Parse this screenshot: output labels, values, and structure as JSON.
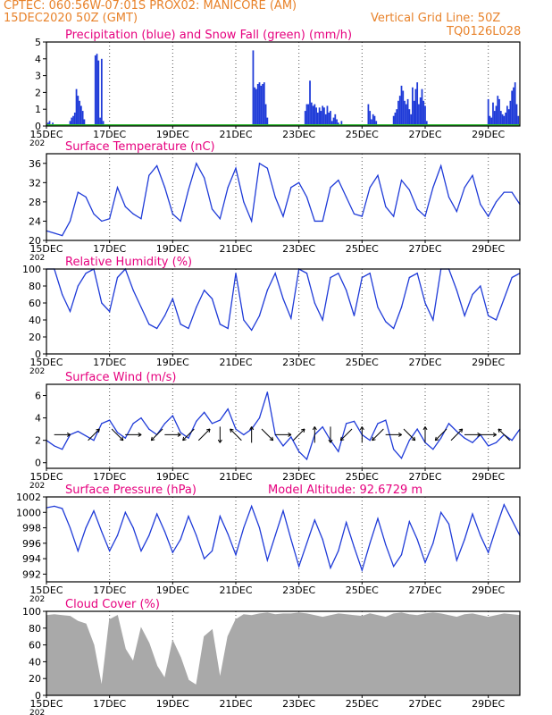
{
  "header": {
    "line1": "CPTEC:   060:56W-07:01S   PROX02: MANICORE (AM)",
    "line2": "15DEC2020 50Z (GMT)",
    "grid_note": "Vertical Grid Line: 50Z",
    "code": "TQ0126L028"
  },
  "colors": {
    "title": "#e6007e",
    "header": "#e8822a",
    "line": "#1f3bd8",
    "snow": "#2db82d",
    "cloud": "#a9a9a9",
    "grid": "#555555"
  },
  "x_tick_labels": [
    "15DEC",
    "17DEC",
    "19DEC",
    "21DEC",
    "23DEC",
    "25DEC",
    "27DEC",
    "29DEC"
  ],
  "chart_data": [
    {
      "id": "precip",
      "type": "bar",
      "title": "Precipitation (blue) and Snow Fall (green) (mm/h)",
      "xlim": [
        0,
        15
      ],
      "ylim": [
        0,
        5
      ],
      "yticks": [
        "0",
        "1",
        "2",
        "3",
        "4",
        "5"
      ],
      "ytick_values": [
        0,
        1,
        2,
        3,
        4,
        5
      ],
      "colors": [
        "#1f3bd8",
        "#2db82d"
      ],
      "series": [
        {
          "name": "Precipitation",
          "type": "bar",
          "x": [
            0.05,
            0.1,
            0.15,
            0.2,
            0.25,
            0.3,
            0.35,
            0.4,
            0.45,
            0.5,
            0.75,
            0.8,
            0.85,
            0.9,
            0.95,
            1.0,
            1.05,
            1.1,
            1.15,
            1.2,
            1.55,
            1.6,
            1.65,
            1.7,
            1.75,
            1.8,
            6.55,
            6.6,
            6.65,
            6.7,
            6.75,
            6.8,
            6.85,
            6.9,
            6.95,
            7.0,
            8.2,
            8.25,
            8.3,
            8.35,
            8.4,
            8.45,
            8.5,
            8.55,
            8.6,
            8.65,
            8.7,
            8.75,
            8.8,
            8.85,
            8.9,
            8.95,
            9.0,
            9.05,
            9.1,
            9.15,
            9.2,
            9.25,
            9.3,
            9.35,
            10.2,
            10.25,
            10.3,
            10.35,
            10.4,
            10.45,
            11.0,
            11.05,
            11.1,
            11.15,
            11.2,
            11.25,
            11.3,
            11.35,
            11.4,
            11.45,
            11.5,
            11.55,
            11.6,
            11.65,
            11.7,
            11.75,
            11.8,
            11.85,
            11.9,
            11.95,
            12.0,
            12.05,
            14.0,
            14.05,
            14.1,
            14.15,
            14.2,
            14.25,
            14.3,
            14.35,
            14.4,
            14.45,
            14.5,
            14.55,
            14.6,
            14.65,
            14.7,
            14.75,
            14.8,
            14.85,
            14.9,
            14.95
          ],
          "values": [
            0.2,
            0.3,
            0.1,
            0.2,
            0.1,
            0.1,
            0.05,
            0.1,
            0.05,
            0.1,
            0.3,
            0.5,
            0.6,
            0.8,
            2.2,
            1.8,
            1.5,
            1.2,
            0.9,
            0.4,
            4.2,
            4.3,
            3.9,
            0.5,
            4.0,
            0.3,
            4.5,
            2.3,
            2.2,
            2.5,
            2.6,
            2.4,
            2.5,
            2.6,
            1.3,
            0.5,
            0.9,
            1.3,
            1.3,
            2.7,
            1.4,
            1.2,
            1.3,
            1.1,
            0.8,
            1.1,
            0.9,
            1.2,
            1.1,
            0.7,
            1.2,
            0.8,
            0.9,
            0.3,
            0.5,
            0.7,
            0.4,
            0.2,
            0.1,
            0.3,
            1.3,
            0.9,
            0.4,
            0.7,
            0.6,
            0.3,
            0.6,
            0.8,
            1.0,
            1.5,
            1.8,
            2.4,
            2.1,
            1.5,
            1.3,
            1.6,
            1.0,
            0.7,
            2.3,
            1.5,
            2.2,
            2.6,
            1.3,
            1.7,
            2.2,
            1.5,
            1.2,
            0.3,
            1.6,
            0.6,
            0.5,
            1.4,
            0.9,
            1.2,
            1.8,
            1.6,
            0.9,
            0.7,
            0.6,
            0.8,
            1.2,
            1.0,
            1.5,
            2.1,
            2.3,
            2.6,
            1.3,
            0.6
          ]
        },
        {
          "name": "Snow Fall",
          "type": "line",
          "x": [
            0,
            15
          ],
          "values": [
            0,
            0
          ]
        }
      ]
    },
    {
      "id": "temp",
      "type": "line",
      "title": "Surface Temperature (nC)",
      "xlim": [
        0,
        15
      ],
      "ylim": [
        20,
        38
      ],
      "yticks": [
        "20",
        "24",
        "28",
        "32",
        "36"
      ],
      "ytick_values": [
        20,
        24,
        28,
        32,
        36
      ],
      "series": [
        {
          "name": "Surface Temperature",
          "x": [
            0,
            0.25,
            0.5,
            0.75,
            1,
            1.25,
            1.5,
            1.75,
            2,
            2.25,
            2.5,
            2.75,
            3,
            3.25,
            3.5,
            3.75,
            4,
            4.25,
            4.5,
            4.75,
            5,
            5.25,
            5.5,
            5.75,
            6,
            6.25,
            6.5,
            6.75,
            7,
            7.25,
            7.5,
            7.75,
            8,
            8.25,
            8.5,
            8.75,
            9,
            9.25,
            9.5,
            9.75,
            10,
            10.25,
            10.5,
            10.75,
            11,
            11.25,
            11.5,
            11.75,
            12,
            12.25,
            12.5,
            12.75,
            13,
            13.25,
            13.5,
            13.75,
            14,
            14.25,
            14.5,
            14.75,
            15
          ],
          "values": [
            22,
            21.5,
            21,
            24,
            30,
            29,
            25.5,
            24,
            24.5,
            31,
            27,
            25.5,
            24.5,
            33.5,
            35.5,
            31,
            25.5,
            24,
            30.5,
            36,
            33,
            26.5,
            24.5,
            31,
            35,
            28,
            24,
            36,
            35,
            29,
            25,
            31,
            32,
            29,
            24,
            24,
            31,
            32.5,
            29,
            25.5,
            25,
            31,
            33.5,
            27,
            25,
            32.5,
            30.5,
            26.5,
            25,
            31,
            35.5,
            29,
            26,
            31,
            33.5,
            27.5,
            25,
            28,
            30,
            30,
            27.5
          ]
        }
      ]
    },
    {
      "id": "rh",
      "type": "line",
      "title": "Relative Humidity (%)",
      "xlim": [
        0,
        15
      ],
      "ylim": [
        0,
        100
      ],
      "yticks": [
        "0",
        "20",
        "40",
        "60",
        "80",
        "100"
      ],
      "ytick_values": [
        0,
        20,
        40,
        60,
        80,
        100
      ],
      "series": [
        {
          "name": "Relative Humidity",
          "x": [
            0,
            0.25,
            0.5,
            0.75,
            1,
            1.25,
            1.5,
            1.75,
            2,
            2.25,
            2.5,
            2.75,
            3,
            3.25,
            3.5,
            3.75,
            4,
            4.25,
            4.5,
            4.75,
            5,
            5.25,
            5.5,
            5.75,
            6,
            6.25,
            6.5,
            6.75,
            7,
            7.25,
            7.5,
            7.75,
            8,
            8.25,
            8.5,
            8.75,
            9,
            9.25,
            9.5,
            9.75,
            10,
            10.25,
            10.5,
            10.75,
            11,
            11.25,
            11.5,
            11.75,
            12,
            12.25,
            12.5,
            12.75,
            13,
            13.25,
            13.5,
            13.75,
            14,
            14.25,
            14.5,
            14.75,
            15
          ],
          "values": [
            100,
            100,
            70,
            50,
            80,
            95,
            100,
            60,
            50,
            90,
            100,
            75,
            55,
            35,
            30,
            45,
            65,
            35,
            30,
            55,
            75,
            65,
            35,
            30,
            95,
            40,
            28,
            45,
            75,
            95,
            65,
            42,
            100,
            95,
            60,
            40,
            90,
            95,
            75,
            45,
            90,
            95,
            55,
            38,
            30,
            55,
            90,
            95,
            60,
            40,
            100,
            100,
            75,
            45,
            70,
            80,
            45,
            40,
            65,
            90,
            95
          ]
        }
      ]
    },
    {
      "id": "wind",
      "type": "line",
      "title": "Surface Wind (m/s)",
      "xlim": [
        0,
        15
      ],
      "ylim": [
        -0.5,
        7
      ],
      "yticks": [
        "0",
        "2",
        "4",
        "6"
      ],
      "ytick_values": [
        0,
        2,
        4,
        6
      ],
      "series": [
        {
          "name": "Surface Wind",
          "x": [
            0,
            0.25,
            0.5,
            0.75,
            1,
            1.25,
            1.5,
            1.75,
            2,
            2.25,
            2.5,
            2.75,
            3,
            3.25,
            3.5,
            3.75,
            4,
            4.25,
            4.5,
            4.75,
            5,
            5.25,
            5.5,
            5.75,
            6,
            6.25,
            6.5,
            6.75,
            7,
            7.25,
            7.5,
            7.75,
            8,
            8.25,
            8.5,
            8.75,
            9,
            9.25,
            9.5,
            9.75,
            10,
            10.25,
            10.5,
            10.75,
            11,
            11.25,
            11.5,
            11.75,
            12,
            12.25,
            12.5,
            12.75,
            13,
            13.25,
            13.5,
            13.75,
            14,
            14.25,
            14.5,
            14.75,
            15
          ],
          "values": [
            2,
            1.5,
            1.2,
            2.5,
            2.8,
            2.4,
            2,
            3.5,
            3.8,
            2.7,
            2.2,
            3.5,
            4,
            3,
            2.5,
            3.5,
            4.2,
            2.7,
            2.2,
            3.7,
            4.5,
            3.5,
            3.8,
            4.8,
            3,
            2.5,
            3,
            4,
            6.3,
            2.5,
            1.5,
            2.3,
            1,
            0.3,
            2.5,
            3.2,
            2,
            1,
            3.5,
            3.7,
            2.5,
            2,
            3.5,
            3.8,
            1.2,
            0.4,
            2,
            3,
            1.8,
            1.2,
            2.2,
            3.5,
            2.8,
            2.2,
            1.8,
            2.5,
            1.5,
            1.8,
            2.5,
            2,
            3
          ]
        }
      ],
      "arrows": [
        [
          0.5,
          0
        ],
        [
          1.5,
          45
        ],
        [
          2.25,
          -45
        ],
        [
          2.75,
          0
        ],
        [
          3.5,
          -135
        ],
        [
          4,
          0
        ],
        [
          4.5,
          -135
        ],
        [
          5,
          45
        ],
        [
          5.5,
          -90
        ],
        [
          6,
          135
        ],
        [
          6.5,
          90
        ],
        [
          7,
          -45
        ],
        [
          7.5,
          0
        ],
        [
          8,
          45
        ],
        [
          8.5,
          90
        ],
        [
          9,
          -90
        ],
        [
          9.5,
          -135
        ],
        [
          10,
          90
        ],
        [
          10.5,
          -135
        ],
        [
          11,
          0
        ],
        [
          11.5,
          -45
        ],
        [
          12,
          90
        ],
        [
          12.5,
          -135
        ],
        [
          13,
          45
        ],
        [
          13.5,
          0
        ],
        [
          14,
          0
        ],
        [
          14.5,
          135
        ]
      ]
    },
    {
      "id": "pressure",
      "type": "line",
      "title": "Surface Pressure (hPa)",
      "xlim": [
        0,
        15
      ],
      "ylim": [
        991,
        1002
      ],
      "yticks": [
        "992",
        "994",
        "996",
        "998",
        "1000",
        "1002"
      ],
      "ytick_values": [
        992,
        994,
        996,
        998,
        1000,
        1002
      ],
      "series": [
        {
          "name": "Surface Pressure",
          "x": [
            0,
            0.25,
            0.5,
            0.75,
            1,
            1.25,
            1.5,
            1.75,
            2,
            2.25,
            2.5,
            2.75,
            3,
            3.25,
            3.5,
            3.75,
            4,
            4.25,
            4.5,
            4.75,
            5,
            5.25,
            5.5,
            5.75,
            6,
            6.25,
            6.5,
            6.75,
            7,
            7.25,
            7.5,
            7.75,
            8,
            8.25,
            8.5,
            8.75,
            9,
            9.25,
            9.5,
            9.75,
            10,
            10.25,
            10.5,
            10.75,
            11,
            11.25,
            11.5,
            11.75,
            12,
            12.25,
            12.5,
            12.75,
            13,
            13.25,
            13.5,
            13.75,
            14,
            14.25,
            14.5,
            14.75,
            15
          ],
          "values": [
            1000.6,
            1000.8,
            1000.5,
            998,
            995,
            998,
            1000.2,
            997.5,
            995,
            997,
            1000,
            998,
            995,
            997,
            999.8,
            997.5,
            994.8,
            996.5,
            999.5,
            997,
            994,
            995,
            999.5,
            997.2,
            994.5,
            998,
            1000.8,
            998,
            993.8,
            997,
            1000.2,
            996.5,
            993,
            996,
            999,
            996.5,
            992.8,
            995,
            998.7,
            995.5,
            992.5,
            996,
            999.2,
            995.8,
            993,
            994.5,
            998.8,
            996.5,
            993.5,
            996,
            1000,
            998.5,
            993.8,
            996.5,
            999.8,
            997,
            994.8,
            998,
            1001,
            999,
            997
          ]
        }
      ]
    },
    {
      "id": "cloud",
      "type": "area",
      "title": "Cloud Cover (%)",
      "xlim": [
        0,
        15
      ],
      "ylim": [
        0,
        100
      ],
      "yticks": [
        "0",
        "20",
        "40",
        "60",
        "80",
        "100"
      ],
      "ytick_values": [
        0,
        20,
        40,
        60,
        80,
        100
      ],
      "series": [
        {
          "name": "Cloud Cover",
          "x": [
            0,
            0.25,
            0.5,
            0.75,
            1,
            1.25,
            1.5,
            1.75,
            2,
            2.25,
            2.5,
            2.75,
            3,
            3.25,
            3.5,
            3.75,
            4,
            4.25,
            4.5,
            4.75,
            5,
            5.25,
            5.5,
            5.75,
            6,
            6.25,
            6.5,
            6.75,
            7,
            7.25,
            7.5,
            7.75,
            8,
            8.25,
            8.5,
            8.75,
            9,
            9.25,
            9.5,
            9.75,
            10,
            10.25,
            10.5,
            10.75,
            11,
            11.25,
            11.5,
            11.75,
            12,
            12.25,
            12.5,
            12.75,
            13,
            13.25,
            13.5,
            13.75,
            14,
            14.25,
            14.5,
            14.75,
            15
          ],
          "values": [
            95,
            96,
            95,
            94,
            88,
            85,
            60,
            10,
            90,
            95,
            55,
            40,
            80,
            62,
            35,
            20,
            65,
            45,
            18,
            12,
            70,
            78,
            20,
            70,
            90,
            96,
            95,
            97,
            98,
            96,
            97,
            97,
            98,
            97,
            95,
            93,
            95,
            97,
            96,
            95,
            94,
            97,
            95,
            93,
            97,
            98,
            96,
            95,
            97,
            98,
            97,
            95,
            93,
            96,
            97,
            95,
            93,
            95,
            97,
            96,
            95
          ]
        }
      ]
    }
  ],
  "extra_labels": {
    "model_altitude": "Model Altitude: 92.6729 m",
    "year_stub": "202"
  }
}
